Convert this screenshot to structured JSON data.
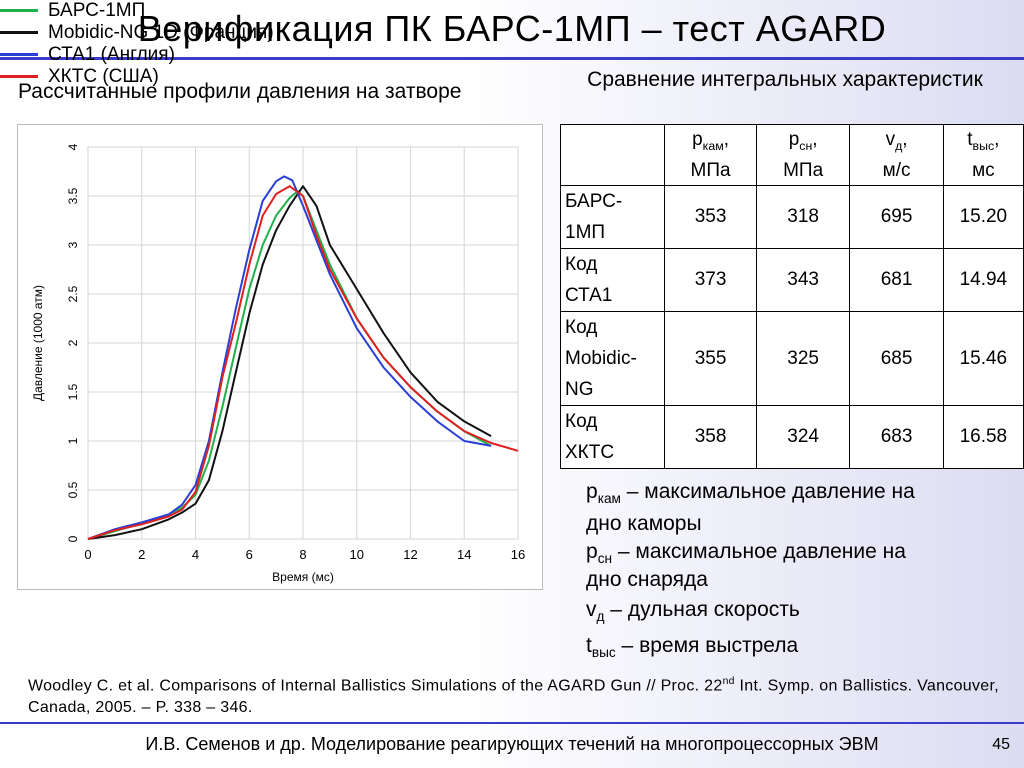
{
  "slide": {
    "title": "Верификация ПК БАРС-1МП – тест AGARD",
    "left_heading": "Рассчитанные профили давления на затворе",
    "right_heading": "Сравнение интегральных характеристик",
    "reference_main": "Woodley C. et al. Comparisons of Internal Ballistics Simulations of the AGARD Gun // Proc. 22",
    "reference_sup": "nd",
    "reference_tail": " Int. Symp. on Ballistics. Vancouver, Canada, 2005. – P. 338 – 346.",
    "footer": "И.В. Семенов и др. Моделирование реагирующих течений на многопроцессорных ЭВМ",
    "page_number": "45"
  },
  "table": {
    "headers": [
      {
        "sym": "p",
        "sub": "кам",
        "tail": ",",
        "unit": "МПа"
      },
      {
        "sym": "p",
        "sub": "сн",
        "tail": ",",
        "unit": "МПа"
      },
      {
        "sym": "v",
        "sub": "д",
        "tail": ",",
        "unit": "м/с"
      },
      {
        "sym": "t",
        "sub": "выс",
        "tail": ",",
        "unit": "мс"
      }
    ],
    "rows": [
      {
        "name_lines": [
          "БАРС-",
          "1МП"
        ],
        "values": [
          "353",
          "318",
          "695",
          "15.20"
        ]
      },
      {
        "name_lines": [
          "Код",
          "СТА1"
        ],
        "values": [
          "373",
          "343",
          "681",
          "14.94"
        ]
      },
      {
        "name_lines": [
          "Код",
          "Mobidic-",
          "NG"
        ],
        "values": [
          "355",
          "325",
          "685",
          "15.46"
        ]
      },
      {
        "name_lines": [
          "Код",
          "ХКТС"
        ],
        "values": [
          "358",
          "324",
          "683",
          "16.58"
        ]
      }
    ]
  },
  "definitions": [
    {
      "sym": "p",
      "sub": "кам",
      "text": " – максимальное давление на",
      "cont": "дно каморы"
    },
    {
      "sym": "p",
      "sub": "сн",
      "text": " – максимальное давление на",
      "cont": "дно снаряда"
    },
    {
      "sym": "v",
      "sub": "д",
      "text": " – дульная скорость",
      "cont": ""
    },
    {
      "sym": "t",
      "sub": "выс",
      "text": " – время выстрела",
      "cont": ""
    }
  ],
  "legend": [
    {
      "label": "БАРС-1МП",
      "color": "#22b04a"
    },
    {
      "label": "Mobidic-NG 1D (Франция)",
      "color": "#111111"
    },
    {
      "label": "СТА1 (Англия)",
      "color": "#2a3fd6"
    },
    {
      "label": "ХКТС (США)",
      "color": "#e02020"
    }
  ],
  "chart_data": {
    "type": "line",
    "xlabel": "Время (мс)",
    "ylabel": "Давление (1000 атм)",
    "xlim": [
      0,
      16
    ],
    "ylim": [
      0,
      4
    ],
    "x_ticks": [
      0,
      2,
      4,
      6,
      8,
      10,
      12,
      14,
      16
    ],
    "y_ticks": [
      0,
      0.5,
      1,
      1.5,
      2,
      2.5,
      3,
      3.5,
      4
    ],
    "grid": true,
    "series": [
      {
        "name": "БАРС-1МП",
        "color": "#22b04a",
        "points": [
          [
            0,
            0
          ],
          [
            1,
            0.08
          ],
          [
            2,
            0.16
          ],
          [
            3,
            0.25
          ],
          [
            3.5,
            0.32
          ],
          [
            4,
            0.45
          ],
          [
            4.5,
            0.8
          ],
          [
            5,
            1.35
          ],
          [
            5.5,
            1.95
          ],
          [
            6,
            2.55
          ],
          [
            6.5,
            3.0
          ],
          [
            7,
            3.3
          ],
          [
            7.5,
            3.48
          ],
          [
            7.8,
            3.55
          ],
          [
            8,
            3.5
          ],
          [
            8.5,
            3.15
          ],
          [
            9,
            2.8
          ],
          [
            10,
            2.25
          ],
          [
            11,
            1.85
          ],
          [
            12,
            1.55
          ],
          [
            13,
            1.3
          ],
          [
            14,
            1.1
          ],
          [
            15,
            0.95
          ]
        ]
      },
      {
        "name": "Mobidic-NG 1D (Франция)",
        "color": "#111111",
        "points": [
          [
            0,
            0
          ],
          [
            1,
            0.04
          ],
          [
            2,
            0.1
          ],
          [
            3,
            0.2
          ],
          [
            3.5,
            0.27
          ],
          [
            4,
            0.36
          ],
          [
            4.5,
            0.6
          ],
          [
            5,
            1.1
          ],
          [
            5.5,
            1.7
          ],
          [
            6,
            2.3
          ],
          [
            6.5,
            2.8
          ],
          [
            7,
            3.15
          ],
          [
            7.5,
            3.4
          ],
          [
            8,
            3.6
          ],
          [
            8.5,
            3.4
          ],
          [
            9,
            3.0
          ],
          [
            10,
            2.55
          ],
          [
            11,
            2.1
          ],
          [
            12,
            1.7
          ],
          [
            13,
            1.4
          ],
          [
            14,
            1.2
          ],
          [
            15,
            1.05
          ]
        ]
      },
      {
        "name": "СТА1 (Англия)",
        "color": "#2a3fd6",
        "points": [
          [
            0,
            0
          ],
          [
            1,
            0.1
          ],
          [
            2,
            0.17
          ],
          [
            3,
            0.25
          ],
          [
            3.5,
            0.35
          ],
          [
            4,
            0.55
          ],
          [
            4.5,
            1.0
          ],
          [
            5,
            1.7
          ],
          [
            5.5,
            2.35
          ],
          [
            6,
            2.95
          ],
          [
            6.5,
            3.45
          ],
          [
            7,
            3.65
          ],
          [
            7.3,
            3.7
          ],
          [
            7.6,
            3.66
          ],
          [
            8,
            3.4
          ],
          [
            8.5,
            3.05
          ],
          [
            9,
            2.7
          ],
          [
            10,
            2.15
          ],
          [
            11,
            1.75
          ],
          [
            12,
            1.45
          ],
          [
            13,
            1.2
          ],
          [
            14,
            1.0
          ],
          [
            15,
            0.95
          ]
        ]
      },
      {
        "name": "ХКТС (США)",
        "color": "#e02020",
        "points": [
          [
            0,
            0
          ],
          [
            1,
            0.09
          ],
          [
            2,
            0.15
          ],
          [
            3,
            0.23
          ],
          [
            3.5,
            0.3
          ],
          [
            4,
            0.48
          ],
          [
            4.5,
            0.95
          ],
          [
            5,
            1.65
          ],
          [
            5.5,
            2.2
          ],
          [
            6,
            2.8
          ],
          [
            6.5,
            3.3
          ],
          [
            7,
            3.52
          ],
          [
            7.5,
            3.6
          ],
          [
            8,
            3.5
          ],
          [
            8.5,
            3.1
          ],
          [
            9,
            2.75
          ],
          [
            10,
            2.25
          ],
          [
            11,
            1.85
          ],
          [
            12,
            1.55
          ],
          [
            13,
            1.3
          ],
          [
            14,
            1.1
          ],
          [
            15,
            0.98
          ],
          [
            16,
            0.9
          ]
        ]
      }
    ]
  }
}
